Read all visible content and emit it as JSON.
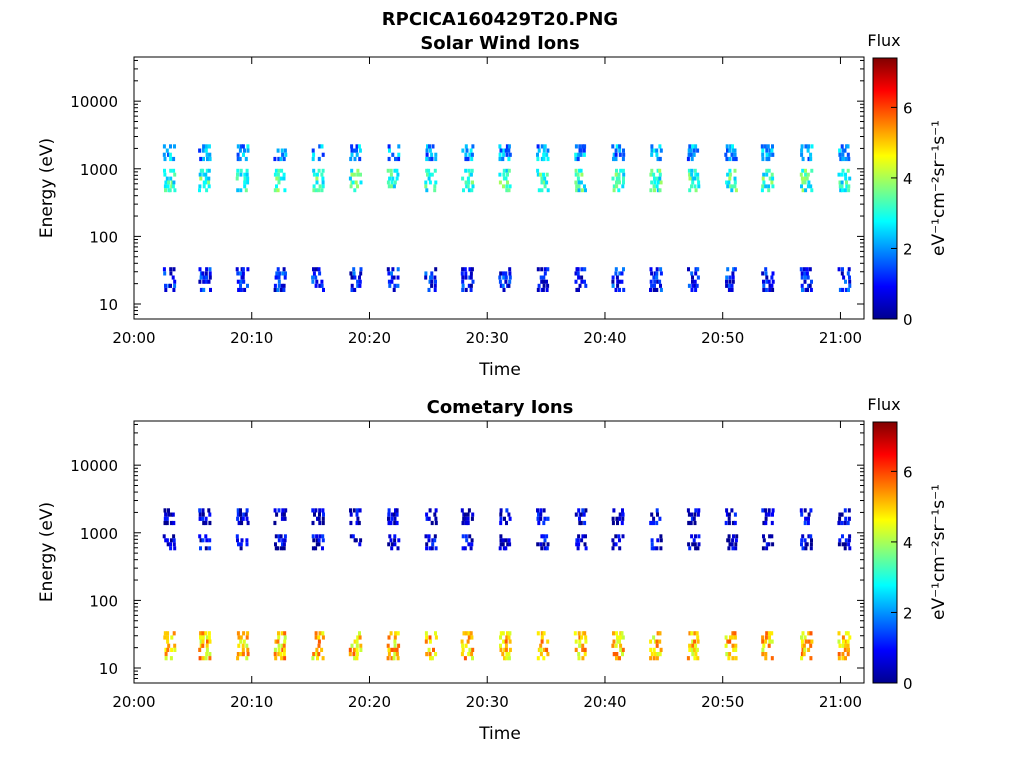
{
  "figure_title": "RPCICA160429T20.PNG",
  "chart_data": [
    {
      "type": "heatmap",
      "title": "Solar Wind Ions",
      "xlabel": "Time",
      "ylabel": "Energy (eV)",
      "y_scale": "log",
      "xlim": [
        "20:00",
        "21:02"
      ],
      "ylim": [
        6,
        45000
      ],
      "x_ticks": [
        "20:00",
        "20:10",
        "20:20",
        "20:30",
        "20:40",
        "20:50",
        "21:00"
      ],
      "y_ticks": [
        "10",
        "100",
        "1000",
        "10000"
      ],
      "colorbar": {
        "label": "Flux",
        "units": "eV⁻¹cm⁻²sr⁻¹s⁻¹",
        "range": [
          0,
          7.4
        ],
        "ticks": [
          "0",
          "2",
          "4",
          "6"
        ],
        "colormap": "jet"
      },
      "scan_times_min": [
        3.2,
        6.2,
        9.4,
        12.6,
        15.8,
        19.0,
        22.2,
        25.4,
        28.5,
        31.7,
        34.9,
        38.1,
        41.3,
        44.5,
        47.7,
        50.9,
        54.0,
        57.3,
        60.5
      ],
      "bands": [
        {
          "energy_range": [
            1300,
            2300
          ],
          "flux": 2.0
        },
        {
          "energy_range": [
            450,
            1000
          ],
          "flux": 3.1
        },
        {
          "energy_range": [
            15,
            35
          ],
          "flux": 1.0
        }
      ]
    },
    {
      "type": "heatmap",
      "title": "Cometary Ions",
      "xlabel": "Time",
      "ylabel": "Energy (eV)",
      "y_scale": "log",
      "xlim": [
        "20:00",
        "21:02"
      ],
      "ylim": [
        6,
        45000
      ],
      "x_ticks": [
        "20:00",
        "20:10",
        "20:20",
        "20:30",
        "20:40",
        "20:50",
        "21:00"
      ],
      "y_ticks": [
        "10",
        "100",
        "1000",
        "10000"
      ],
      "colorbar": {
        "label": "Flux",
        "units": "eV⁻¹cm⁻²sr⁻¹s⁻¹",
        "range": [
          0,
          7.4
        ],
        "ticks": [
          "0",
          "2",
          "4",
          "6"
        ],
        "colormap": "jet"
      },
      "scan_times_min": [
        3.2,
        6.2,
        9.4,
        12.6,
        15.8,
        19.0,
        22.2,
        25.4,
        28.5,
        31.7,
        34.9,
        38.1,
        41.3,
        44.5,
        47.7,
        50.9,
        54.0,
        57.3,
        60.5
      ],
      "bands": [
        {
          "energy_range": [
            1300,
            2300
          ],
          "flux": 0.5
        },
        {
          "energy_range": [
            550,
            950
          ],
          "flux": 0.5
        },
        {
          "energy_range": [
            13,
            35
          ],
          "flux": 5.0
        }
      ]
    }
  ]
}
